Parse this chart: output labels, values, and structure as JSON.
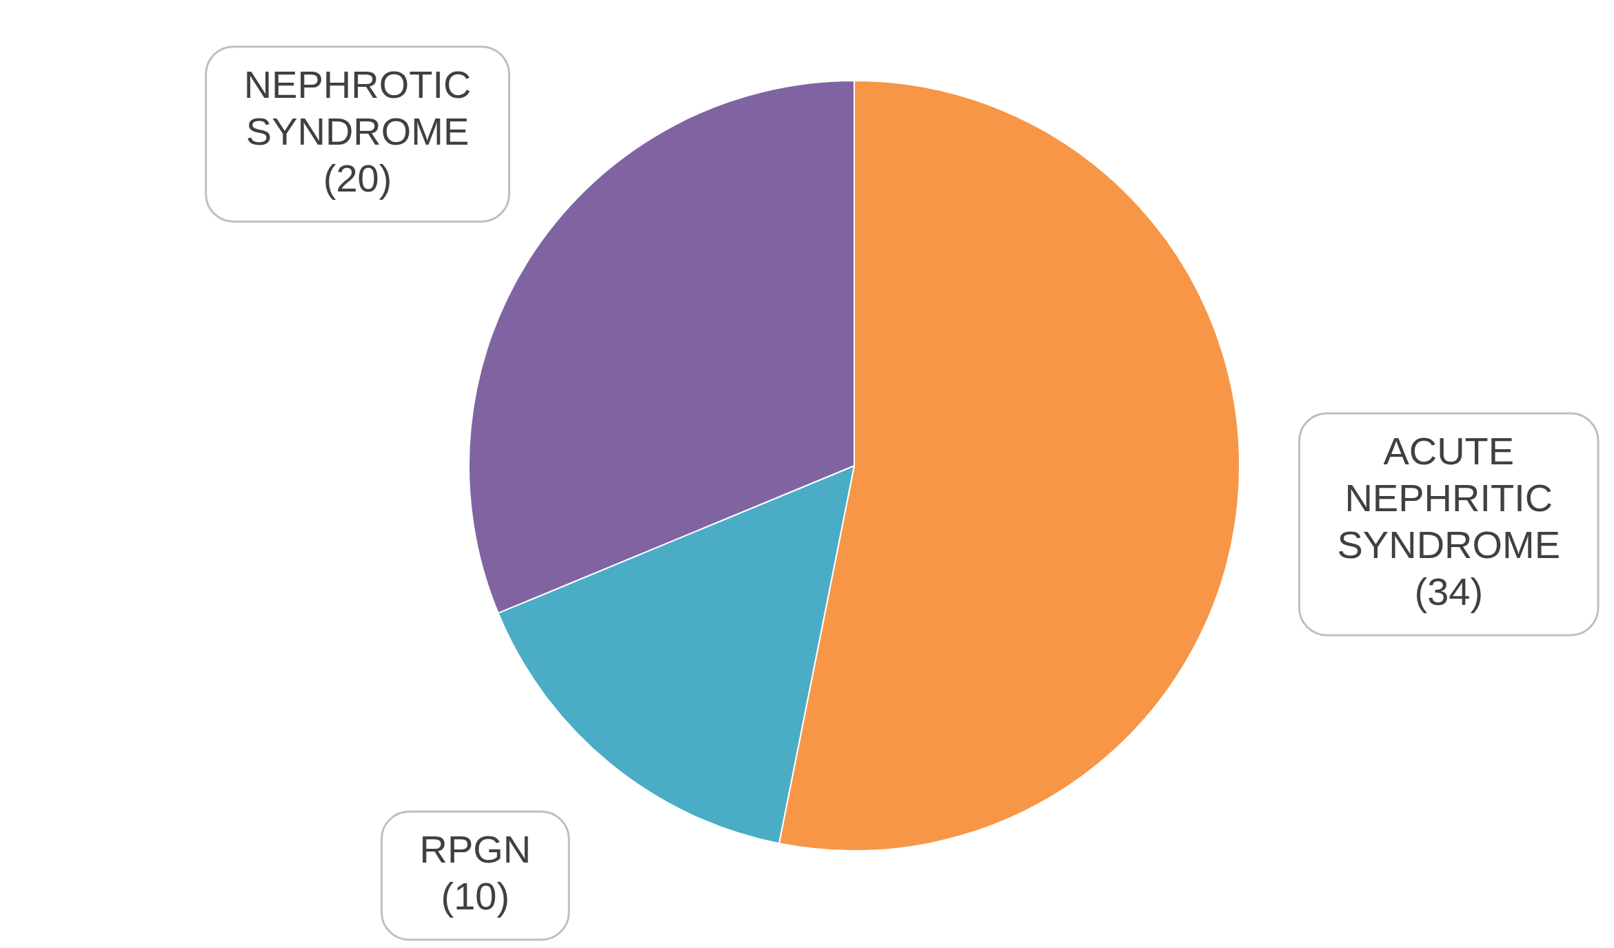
{
  "chart_data": {
    "type": "pie",
    "categories": [
      "ACUTE NEPHRITIC SYNDROME",
      "RPGN",
      "NEPHROTIC SYNDROME"
    ],
    "values": [
      34,
      10,
      20
    ],
    "colors": [
      "#f79646",
      "#4bacc6",
      "#8064a2"
    ],
    "value_labels": [
      "(34)",
      "(10)",
      "(20)"
    ],
    "legend": false
  }
}
